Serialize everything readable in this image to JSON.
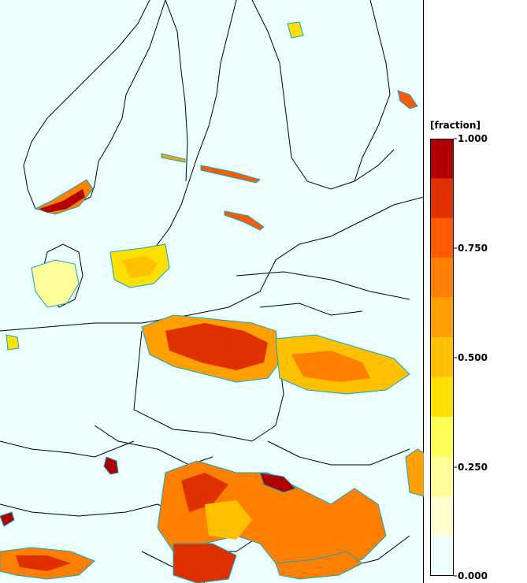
{
  "legend": {
    "title": "[fraction]",
    "colors": [
      "#eeffff",
      "#ffffd0",
      "#ffff99",
      "#ffff55",
      "#ffe000",
      "#ffc000",
      "#ffa000",
      "#ff7f00",
      "#ff5a00",
      "#e03000",
      "#b00000"
    ],
    "tick_labels": [
      "1.000",
      "0.750",
      "0.500",
      "0.250",
      "0.000"
    ]
  },
  "map": {
    "background_color": "#eeffff",
    "coast_color": "#000000",
    "contour_color": "#00aacc"
  }
}
